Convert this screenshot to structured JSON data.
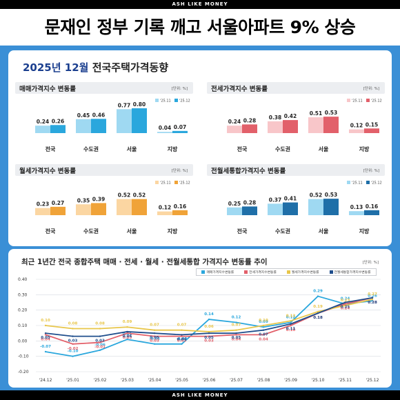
{
  "brand": "ASH LIKE MONEY",
  "headline": "문재인 정부 기록 깨고 서울아파트 9% 상승",
  "panel_title": {
    "year_month": "2025년 12월",
    "rest": "전국주택가격동향"
  },
  "colors": {
    "sale": [
      "#9fd9f2",
      "#2aa7dd"
    ],
    "jeonse": [
      "#f8c6c9",
      "#e2606a"
    ],
    "wolse": [
      "#fbd6a2",
      "#f0a338"
    ],
    "combined": [
      "#9fd9f2",
      "#1f6fa8"
    ],
    "line_series": [
      "#2aa7dd",
      "#e2606a",
      "#e8c64a",
      "#1f4e8c"
    ]
  },
  "chart_data": [
    {
      "type": "bar",
      "title": "매매가격지수 변동률",
      "unit": "[단위: %]",
      "categories": [
        "전국",
        "수도권",
        "서울",
        "지방"
      ],
      "series": [
        {
          "name": "'25.11",
          "values": [
            0.24,
            0.45,
            0.77,
            0.04
          ]
        },
        {
          "name": "'25.12",
          "values": [
            0.26,
            0.46,
            0.8,
            0.07
          ]
        }
      ]
    },
    {
      "type": "bar",
      "title": "전세가격지수 변동률",
      "unit": "[단위: %]",
      "categories": [
        "전국",
        "수도권",
        "서울",
        "지방"
      ],
      "series": [
        {
          "name": "'25.11",
          "values": [
            0.24,
            0.38,
            0.51,
            0.12
          ]
        },
        {
          "name": "'25.12",
          "values": [
            0.28,
            0.42,
            0.53,
            0.15
          ]
        }
      ]
    },
    {
      "type": "bar",
      "title": "월세가격지수 변동률",
      "unit": "[단위: %]",
      "categories": [
        "전국",
        "수도권",
        "서울",
        "지방"
      ],
      "series": [
        {
          "name": "'25.11",
          "values": [
            0.23,
            0.35,
            0.52,
            0.12
          ]
        },
        {
          "name": "'25.12",
          "values": [
            0.27,
            0.39,
            0.52,
            0.16
          ]
        }
      ]
    },
    {
      "type": "bar",
      "title": "전월세통합가격지수 변동률",
      "unit": "[단위: %]",
      "categories": [
        "전국",
        "수도권",
        "서울",
        "지방"
      ],
      "series": [
        {
          "name": "'25.11",
          "values": [
            0.25,
            0.37,
            0.52,
            0.13
          ]
        },
        {
          "name": "'25.12",
          "values": [
            0.28,
            0.41,
            0.53,
            0.16
          ]
        }
      ]
    },
    {
      "type": "line",
      "title": "최근 1년간 전국 종합주택 매매 · 전세 · 월세 · 전월세통합 가격지수 변동률 추이",
      "unit": "[단위: %]",
      "x": [
        "'24.12",
        "'25.01",
        "'25.02",
        "'25.03",
        "'25.04",
        "'25.05",
        "'25.06",
        "'25.07",
        "'25.08",
        "'25.09",
        "'25.10",
        "'25.11",
        "'25.12"
      ],
      "ylim": [
        -0.2,
        0.4
      ],
      "yticks": [
        "0.40",
        "0.30",
        "0.20",
        "0.10",
        "0.00",
        "-0.10",
        "-0.20"
      ],
      "grid": true,
      "legend_position": "top-right",
      "series": [
        {
          "name": "매매가격지수변동률",
          "values": [
            -0.07,
            -0.1,
            -0.06,
            0.01,
            -0.02,
            -0.02,
            0.14,
            0.12,
            0.09,
            0.12,
            0.29,
            0.24,
            0.26
          ]
        },
        {
          "name": "전세가격지수변동률",
          "values": [
            0.04,
            -0.02,
            -0.01,
            0.05,
            0.03,
            0.03,
            0.03,
            0.04,
            0.04,
            0.1,
            0.18,
            0.24,
            0.28
          ]
        },
        {
          "name": "월세가격지수변동률",
          "values": [
            0.1,
            0.08,
            0.08,
            0.09,
            0.07,
            0.07,
            0.06,
            0.07,
            0.1,
            0.13,
            0.19,
            0.23,
            0.27
          ]
        },
        {
          "name": "전월세통합가격지수변동률",
          "values": [
            0.05,
            0.03,
            0.03,
            0.06,
            0.05,
            0.04,
            0.05,
            0.05,
            0.07,
            0.11,
            0.18,
            0.25,
            0.28
          ]
        }
      ]
    }
  ]
}
